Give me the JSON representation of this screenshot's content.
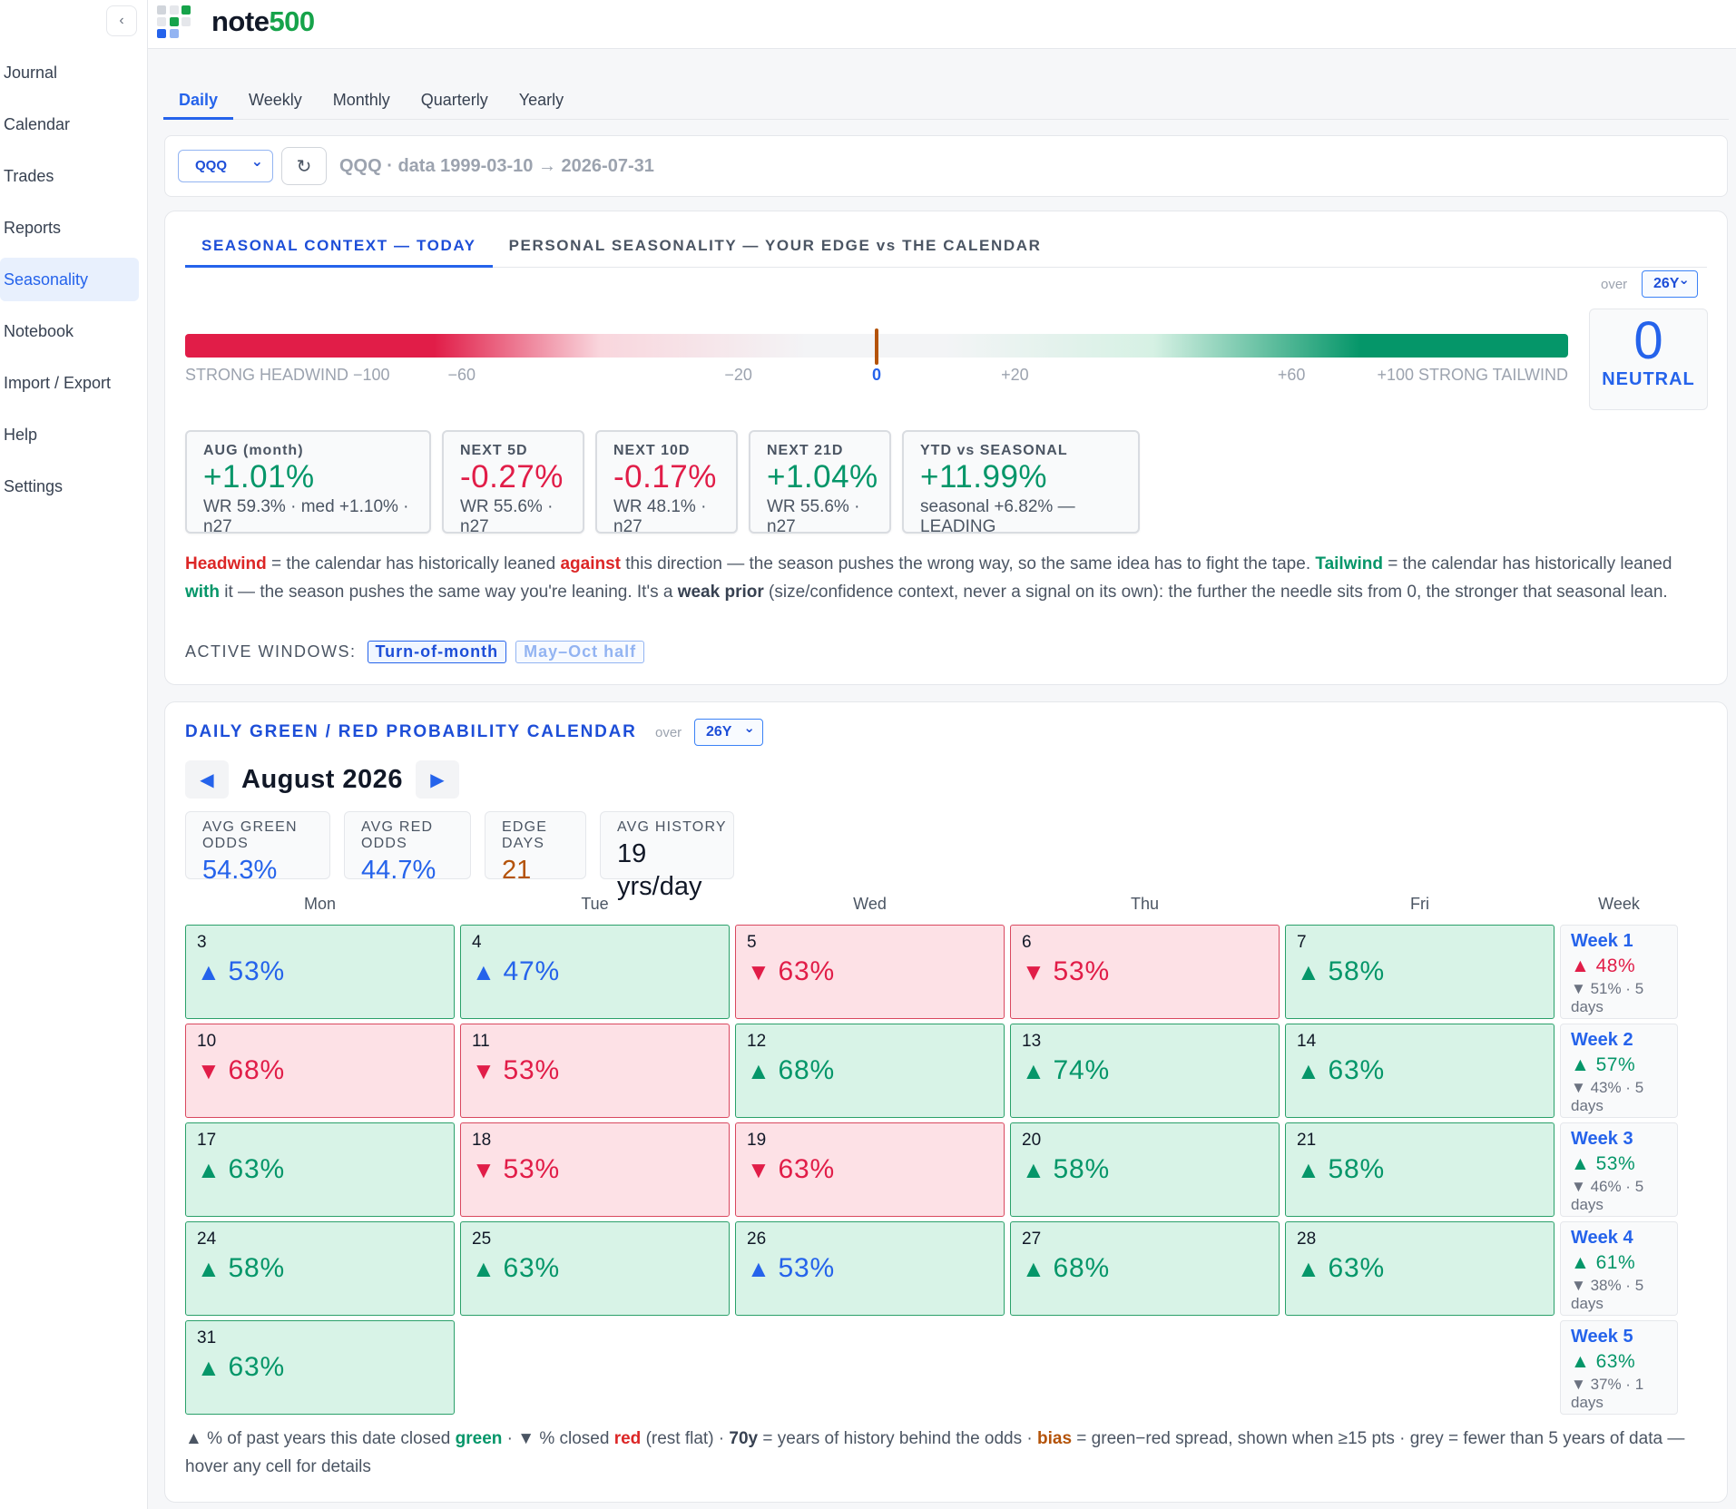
{
  "app": {
    "brand_prefix": "note",
    "brand_accent": "500",
    "collapse_icon": "chevron-left-icon"
  },
  "sidebar": {
    "items": [
      {
        "label": "Journal"
      },
      {
        "label": "Calendar"
      },
      {
        "label": "Trades"
      },
      {
        "label": "Reports"
      },
      {
        "label": "Seasonality",
        "active": true
      },
      {
        "label": "Notebook"
      },
      {
        "label": "Import / Export"
      },
      {
        "label": "Help"
      },
      {
        "label": "Settings"
      }
    ]
  },
  "period_tabs": [
    {
      "label": "Daily",
      "active": true
    },
    {
      "label": "Weekly"
    },
    {
      "label": "Monthly"
    },
    {
      "label": "Quarterly"
    },
    {
      "label": "Yearly"
    }
  ],
  "ticker": {
    "selected": "QQQ",
    "refresh_icon": "refresh-icon",
    "info": "QQQ · data 1999-03-10 → 2026-07-31"
  },
  "context": {
    "tabs": [
      {
        "label": "SEASONAL CONTEXT — TODAY",
        "active": true
      },
      {
        "label": "PERSONAL SEASONALITY — YOUR EDGE vs THE CALENDAR"
      }
    ],
    "over_label": "over",
    "range": "26Y",
    "gauge": {
      "labels": [
        "STRONG HEADWIND −100",
        "−60",
        "−20",
        "0",
        "+20",
        "+60",
        "+100 STRONG TAILWIND"
      ],
      "value": 0
    },
    "score": {
      "value": "0",
      "label": "NEUTRAL"
    },
    "stats": [
      {
        "label": "AUG (month)",
        "value": "+1.01%",
        "sub": "WR 59.3% · med +1.10% · n27",
        "tone": "pos"
      },
      {
        "label": "NEXT 5D",
        "value": "-0.27%",
        "sub": "WR 55.6% · n27",
        "tone": "neg"
      },
      {
        "label": "NEXT 10D",
        "value": "-0.17%",
        "sub": "WR 48.1% · n27",
        "tone": "neg"
      },
      {
        "label": "NEXT 21D",
        "value": "+1.04%",
        "sub": "WR 55.6% · n27",
        "tone": "pos"
      },
      {
        "label": "YTD vs SEASONAL",
        "value": "+11.99%",
        "sub": "seasonal +6.82% — LEADING",
        "tone": "pos"
      }
    ],
    "explain": {
      "headwind": "Headwind",
      "t1": " = the calendar has historically leaned ",
      "against": "against",
      "t2": " this direction — the season pushes the wrong way, so the same idea has to fight the tape. ",
      "tailwind": "Tailwind",
      "t3": " = the calendar has historically leaned ",
      "with": "with",
      "t4": " it — the season pushes the same way you're leaning. It's a ",
      "weak": "weak prior",
      "t5": " (size/confidence context, never a signal on its own): the further the needle sits from 0, the stronger that seasonal lean."
    },
    "windows_label": "ACTIVE WINDOWS:",
    "windows": [
      {
        "label": "Turn-of-month",
        "dim": false
      },
      {
        "label": "May–Oct half",
        "dim": true
      }
    ]
  },
  "calendar": {
    "title": "DAILY GREEN / RED PROBABILITY CALENDAR",
    "over_label": "over",
    "range": "26Y",
    "month": "August 2026",
    "prev_icon": "triangle-left-icon",
    "next_icon": "triangle-right-icon",
    "summary": [
      {
        "label": "AVG GREEN ODDS",
        "value": "54.3%",
        "color": "#2563eb"
      },
      {
        "label": "AVG RED ODDS",
        "value": "44.7%",
        "color": "#2563eb"
      },
      {
        "label": "EDGE DAYS",
        "value": "21",
        "color": "#b45309"
      },
      {
        "label": "AVG HISTORY",
        "value": "19 yrs/day",
        "color": "#111827"
      }
    ],
    "weekdays": [
      "Mon",
      "Tue",
      "Wed",
      "Thu",
      "Fri",
      "Week"
    ],
    "weeks": [
      {
        "days": [
          {
            "day": "3",
            "odds": "53%",
            "dir": "up",
            "tone": "g",
            "num": "b"
          },
          {
            "day": "4",
            "odds": "47%",
            "dir": "up",
            "tone": "g",
            "num": "b"
          },
          {
            "day": "5",
            "odds": "63%",
            "dir": "down",
            "tone": "r",
            "num": "r"
          },
          {
            "day": "6",
            "odds": "53%",
            "dir": "down",
            "tone": "r",
            "num": "r"
          },
          {
            "day": "7",
            "odds": "58%",
            "dir": "up",
            "tone": "g",
            "num": "g"
          }
        ],
        "summary": {
          "name": "Week 1",
          "main": "48%",
          "main_dir": "up",
          "main_tone": "red",
          "sub": "51% · 5 days"
        }
      },
      {
        "days": [
          {
            "day": "10",
            "odds": "68%",
            "dir": "down",
            "tone": "r",
            "num": "r"
          },
          {
            "day": "11",
            "odds": "53%",
            "dir": "down",
            "tone": "r",
            "num": "r"
          },
          {
            "day": "12",
            "odds": "68%",
            "dir": "up",
            "tone": "g",
            "num": "g"
          },
          {
            "day": "13",
            "odds": "74%",
            "dir": "up",
            "tone": "g",
            "num": "g"
          },
          {
            "day": "14",
            "odds": "63%",
            "dir": "up",
            "tone": "g",
            "num": "g"
          }
        ],
        "summary": {
          "name": "Week 2",
          "main": "57%",
          "main_dir": "up",
          "main_tone": "green",
          "sub": "43% · 5 days"
        }
      },
      {
        "days": [
          {
            "day": "17",
            "odds": "63%",
            "dir": "up",
            "tone": "g",
            "num": "g"
          },
          {
            "day": "18",
            "odds": "53%",
            "dir": "down",
            "tone": "r",
            "num": "r"
          },
          {
            "day": "19",
            "odds": "63%",
            "dir": "down",
            "tone": "r",
            "num": "r"
          },
          {
            "day": "20",
            "odds": "58%",
            "dir": "up",
            "tone": "g",
            "num": "g"
          },
          {
            "day": "21",
            "odds": "58%",
            "dir": "up",
            "tone": "g",
            "num": "g"
          }
        ],
        "summary": {
          "name": "Week 3",
          "main": "53%",
          "main_dir": "up",
          "main_tone": "green",
          "sub": "46% · 5 days"
        }
      },
      {
        "days": [
          {
            "day": "24",
            "odds": "58%",
            "dir": "up",
            "tone": "g",
            "num": "g"
          },
          {
            "day": "25",
            "odds": "63%",
            "dir": "up",
            "tone": "g",
            "num": "g"
          },
          {
            "day": "26",
            "odds": "53%",
            "dir": "up",
            "tone": "g",
            "num": "b"
          },
          {
            "day": "27",
            "odds": "68%",
            "dir": "up",
            "tone": "g",
            "num": "g"
          },
          {
            "day": "28",
            "odds": "63%",
            "dir": "up",
            "tone": "g",
            "num": "g"
          }
        ],
        "summary": {
          "name": "Week 4",
          "main": "61%",
          "main_dir": "up",
          "main_tone": "green",
          "sub": "38% · 5 days"
        }
      },
      {
        "days": [
          {
            "day": "31",
            "odds": "63%",
            "dir": "up",
            "tone": "g",
            "num": "g"
          }
        ],
        "summary": {
          "name": "Week 5",
          "main": "63%",
          "main_dir": "up",
          "main_tone": "green",
          "sub": "37% · 1 days"
        }
      }
    ],
    "footnote": {
      "t1": "▲ % of past years this date closed ",
      "green": "green",
      "t2": " · ▼ % closed ",
      "red": "red",
      "t3": " (rest flat) · ",
      "y70": "70y",
      "t4": " = years of history behind the odds · ",
      "bias": "bias",
      "t5": " = green−red spread, shown when ≥15 pts · grey = fewer than 5 years of data — hover any cell for details"
    }
  },
  "colors": {
    "accent": "#2563eb",
    "green": "#059669",
    "red": "#e11d48",
    "orange": "#b45309"
  }
}
